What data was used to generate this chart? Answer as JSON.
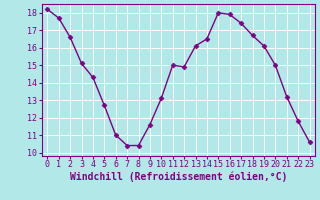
{
  "x": [
    0,
    1,
    2,
    3,
    4,
    5,
    6,
    7,
    8,
    9,
    10,
    11,
    12,
    13,
    14,
    15,
    16,
    17,
    18,
    19,
    20,
    21,
    22,
    23
  ],
  "y": [
    18.2,
    17.7,
    16.6,
    15.1,
    14.3,
    12.7,
    11.0,
    10.4,
    10.4,
    11.6,
    13.1,
    15.0,
    14.9,
    16.1,
    16.5,
    18.0,
    17.9,
    17.4,
    16.7,
    16.1,
    15.0,
    13.2,
    11.8,
    10.6
  ],
  "line_color": "#800080",
  "marker": "D",
  "marker_size": 2.5,
  "line_width": 1.0,
  "bg_color": "#b2e8e8",
  "grid_color": "#ffffff",
  "xlabel": "Windchill (Refroidissement éolien,°C)",
  "xlabel_color": "#800080",
  "tick_color": "#800080",
  "ylim": [
    9.8,
    18.5
  ],
  "xlim": [
    -0.5,
    23.5
  ],
  "yticks": [
    10,
    11,
    12,
    13,
    14,
    15,
    16,
    17,
    18
  ],
  "xticks": [
    0,
    1,
    2,
    3,
    4,
    5,
    6,
    7,
    8,
    9,
    10,
    11,
    12,
    13,
    14,
    15,
    16,
    17,
    18,
    19,
    20,
    21,
    22,
    23
  ],
  "xlabel_fontsize": 7.0,
  "tick_fontsize": 6.0
}
